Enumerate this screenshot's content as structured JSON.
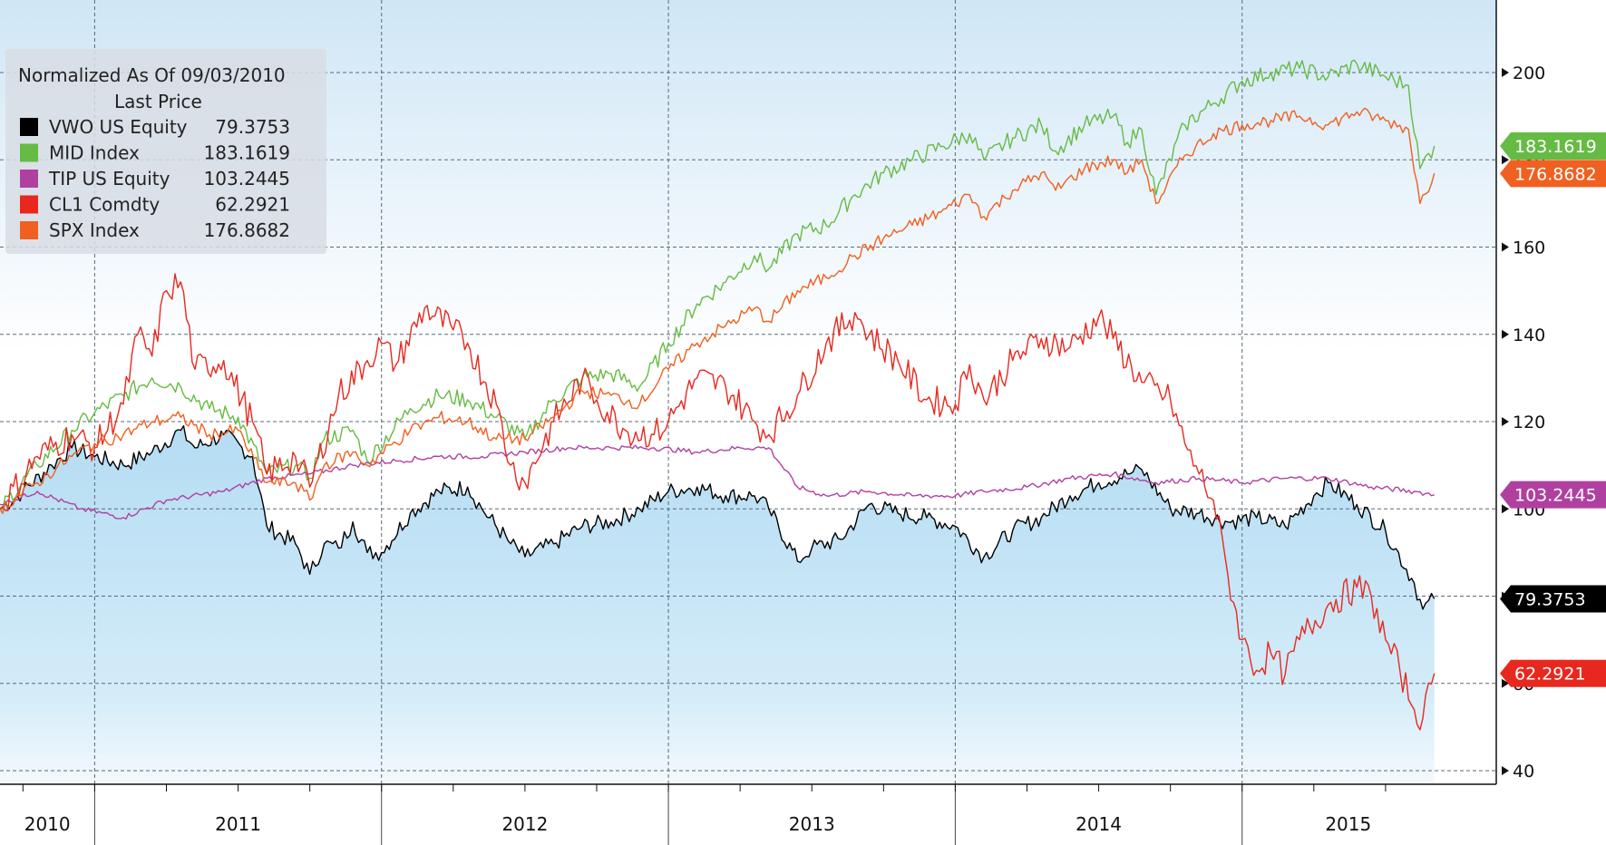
{
  "chart_data": {
    "type": "line",
    "legend": {
      "title": "Normalized As Of 09/03/2010",
      "subtitle": "Last Price",
      "position": "top-left"
    },
    "x_tick_labels": [
      "2010",
      "2011",
      "2012",
      "2013",
      "2014",
      "2015"
    ],
    "y_tick_labels": [
      "40",
      "60",
      "80",
      "100",
      "120",
      "140",
      "160",
      "180",
      "200"
    ],
    "x_range": [
      2010.67,
      2015.75
    ],
    "ylim": [
      36,
      218
    ],
    "grid": true,
    "series": [
      {
        "name": "VWO US Equity",
        "last": "79.3753",
        "last_value": 79.3753,
        "color": "#000000",
        "area_fill": true,
        "points": [
          [
            2010.67,
            100
          ],
          [
            2010.75,
            104
          ],
          [
            2010.85,
            110
          ],
          [
            2010.92,
            114
          ],
          [
            2011.0,
            112
          ],
          [
            2011.1,
            110
          ],
          [
            2011.2,
            113
          ],
          [
            2011.3,
            118
          ],
          [
            2011.35,
            114
          ],
          [
            2011.45,
            117
          ],
          [
            2011.55,
            112
          ],
          [
            2011.6,
            96
          ],
          [
            2011.7,
            92
          ],
          [
            2011.75,
            85
          ],
          [
            2011.8,
            92
          ],
          [
            2011.85,
            91
          ],
          [
            2011.9,
            97
          ],
          [
            2011.95,
            90
          ],
          [
            2012.0,
            90
          ],
          [
            2012.1,
            99
          ],
          [
            2012.2,
            104
          ],
          [
            2012.3,
            105
          ],
          [
            2012.35,
            100
          ],
          [
            2012.45,
            92
          ],
          [
            2012.5,
            89
          ],
          [
            2012.6,
            92
          ],
          [
            2012.7,
            96
          ],
          [
            2012.8,
            97
          ],
          [
            2012.9,
            100
          ],
          [
            2013.0,
            104
          ],
          [
            2013.1,
            105
          ],
          [
            2013.2,
            103
          ],
          [
            2013.3,
            103
          ],
          [
            2013.35,
            100
          ],
          [
            2013.45,
            88
          ],
          [
            2013.5,
            91
          ],
          [
            2013.6,
            93
          ],
          [
            2013.7,
            101
          ],
          [
            2013.8,
            99
          ],
          [
            2013.9,
            98
          ],
          [
            2014.0,
            96
          ],
          [
            2014.1,
            89
          ],
          [
            2014.2,
            95
          ],
          [
            2014.3,
            98
          ],
          [
            2014.4,
            103
          ],
          [
            2014.5,
            106
          ],
          [
            2014.6,
            108
          ],
          [
            2014.65,
            109
          ],
          [
            2014.75,
            100
          ],
          [
            2014.85,
            99
          ],
          [
            2014.95,
            97
          ],
          [
            2015.05,
            98
          ],
          [
            2015.15,
            96
          ],
          [
            2015.25,
            103
          ],
          [
            2015.3,
            106
          ],
          [
            2015.4,
            101
          ],
          [
            2015.5,
            95
          ],
          [
            2015.6,
            83
          ],
          [
            2015.63,
            77
          ],
          [
            2015.67,
            79.4
          ]
        ]
      },
      {
        "name": "MID Index",
        "last": "183.1619",
        "last_value": 183.1619,
        "color": "#66bb44",
        "area_fill": false,
        "points": [
          [
            2010.67,
            100
          ],
          [
            2010.8,
            110
          ],
          [
            2010.92,
            118
          ],
          [
            2011.0,
            122
          ],
          [
            2011.1,
            126
          ],
          [
            2011.2,
            130
          ],
          [
            2011.3,
            128
          ],
          [
            2011.4,
            123
          ],
          [
            2011.5,
            121
          ],
          [
            2011.6,
            108
          ],
          [
            2011.7,
            110
          ],
          [
            2011.75,
            107
          ],
          [
            2011.8,
            116
          ],
          [
            2011.9,
            118
          ],
          [
            2011.95,
            111
          ],
          [
            2012.1,
            123
          ],
          [
            2012.2,
            126
          ],
          [
            2012.3,
            125
          ],
          [
            2012.4,
            121
          ],
          [
            2012.5,
            116
          ],
          [
            2012.6,
            125
          ],
          [
            2012.7,
            130
          ],
          [
            2012.8,
            131
          ],
          [
            2012.9,
            128
          ],
          [
            2013.0,
            138
          ],
          [
            2013.1,
            147
          ],
          [
            2013.2,
            152
          ],
          [
            2013.3,
            158
          ],
          [
            2013.35,
            155
          ],
          [
            2013.45,
            163
          ],
          [
            2013.55,
            165
          ],
          [
            2013.65,
            172
          ],
          [
            2013.75,
            177
          ],
          [
            2013.85,
            180
          ],
          [
            2013.95,
            183
          ],
          [
            2014.05,
            186
          ],
          [
            2014.1,
            180
          ],
          [
            2014.2,
            185
          ],
          [
            2014.3,
            188
          ],
          [
            2014.35,
            182
          ],
          [
            2014.45,
            188
          ],
          [
            2014.55,
            190
          ],
          [
            2014.6,
            184
          ],
          [
            2014.65,
            187
          ],
          [
            2014.7,
            172
          ],
          [
            2014.8,
            188
          ],
          [
            2014.9,
            193
          ],
          [
            2015.0,
            198
          ],
          [
            2015.1,
            200
          ],
          [
            2015.2,
            201
          ],
          [
            2015.3,
            199
          ],
          [
            2015.4,
            202
          ],
          [
            2015.5,
            199
          ],
          [
            2015.58,
            197
          ],
          [
            2015.62,
            178
          ],
          [
            2015.67,
            183.2
          ]
        ]
      },
      {
        "name": "TIP US Equity",
        "last": "103.2445",
        "last_value": 103.2445,
        "color": "#b040a0",
        "area_fill": false,
        "points": [
          [
            2010.67,
            101
          ],
          [
            2010.8,
            104
          ],
          [
            2010.95,
            100
          ],
          [
            2011.1,
            98
          ],
          [
            2011.25,
            102
          ],
          [
            2011.45,
            104
          ],
          [
            2011.6,
            107
          ],
          [
            2011.75,
            108
          ],
          [
            2011.9,
            110
          ],
          [
            2012.05,
            111
          ],
          [
            2012.2,
            112
          ],
          [
            2012.35,
            112
          ],
          [
            2012.5,
            113
          ],
          [
            2012.65,
            114
          ],
          [
            2012.8,
            114
          ],
          [
            2012.95,
            114
          ],
          [
            2013.1,
            113
          ],
          [
            2013.25,
            114
          ],
          [
            2013.35,
            114
          ],
          [
            2013.45,
            105
          ],
          [
            2013.55,
            103
          ],
          [
            2013.7,
            104
          ],
          [
            2013.85,
            103
          ],
          [
            2014.0,
            103
          ],
          [
            2014.1,
            104
          ],
          [
            2014.25,
            105
          ],
          [
            2014.4,
            107
          ],
          [
            2014.55,
            108
          ],
          [
            2014.7,
            106
          ],
          [
            2014.85,
            107
          ],
          [
            2015.0,
            106
          ],
          [
            2015.15,
            107
          ],
          [
            2015.3,
            107
          ],
          [
            2015.45,
            105
          ],
          [
            2015.6,
            104
          ],
          [
            2015.67,
            103.2
          ]
        ]
      },
      {
        "name": "CL1 Comdty",
        "last": "62.2921",
        "last_value": 62.2921,
        "color": "#e8281e",
        "area_fill": false,
        "points": [
          [
            2010.67,
            100
          ],
          [
            2010.8,
            112
          ],
          [
            2010.92,
            117
          ],
          [
            2011.0,
            114
          ],
          [
            2011.1,
            124
          ],
          [
            2011.15,
            140
          ],
          [
            2011.2,
            135
          ],
          [
            2011.25,
            150
          ],
          [
            2011.3,
            152
          ],
          [
            2011.35,
            132
          ],
          [
            2011.45,
            134
          ],
          [
            2011.55,
            120
          ],
          [
            2011.6,
            108
          ],
          [
            2011.7,
            112
          ],
          [
            2011.75,
            105
          ],
          [
            2011.85,
            126
          ],
          [
            2011.95,
            134
          ],
          [
            2012.0,
            138
          ],
          [
            2012.05,
            133
          ],
          [
            2012.15,
            146
          ],
          [
            2012.25,
            141
          ],
          [
            2012.3,
            138
          ],
          [
            2012.4,
            124
          ],
          [
            2012.45,
            110
          ],
          [
            2012.5,
            106
          ],
          [
            2012.6,
            120
          ],
          [
            2012.7,
            130
          ],
          [
            2012.75,
            125
          ],
          [
            2012.85,
            118
          ],
          [
            2012.95,
            117
          ],
          [
            2013.0,
            120
          ],
          [
            2013.1,
            130
          ],
          [
            2013.2,
            128
          ],
          [
            2013.3,
            120
          ],
          [
            2013.35,
            117
          ],
          [
            2013.45,
            126
          ],
          [
            2013.55,
            138
          ],
          [
            2013.65,
            145
          ],
          [
            2013.7,
            140
          ],
          [
            2013.8,
            134
          ],
          [
            2013.9,
            125
          ],
          [
            2014.0,
            124
          ],
          [
            2014.05,
            133
          ],
          [
            2014.1,
            125
          ],
          [
            2014.2,
            134
          ],
          [
            2014.3,
            139
          ],
          [
            2014.4,
            137
          ],
          [
            2014.5,
            144
          ],
          [
            2014.55,
            139
          ],
          [
            2014.65,
            129
          ],
          [
            2014.75,
            125
          ],
          [
            2014.8,
            115
          ],
          [
            2014.85,
            108
          ],
          [
            2014.9,
            102
          ],
          [
            2014.95,
            85
          ],
          [
            2015.0,
            70
          ],
          [
            2015.05,
            63
          ],
          [
            2015.1,
            67
          ],
          [
            2015.15,
            62
          ],
          [
            2015.2,
            70
          ],
          [
            2015.3,
            78
          ],
          [
            2015.4,
            82
          ],
          [
            2015.45,
            80
          ],
          [
            2015.5,
            70
          ],
          [
            2015.55,
            63
          ],
          [
            2015.6,
            54
          ],
          [
            2015.63,
            52
          ],
          [
            2015.67,
            62.3
          ]
        ]
      },
      {
        "name": "SPX Index",
        "last": "176.8682",
        "last_value": 176.8682,
        "color": "#f06020",
        "area_fill": false,
        "points": [
          [
            2010.67,
            100
          ],
          [
            2010.8,
            106
          ],
          [
            2010.92,
            112
          ],
          [
            2011.0,
            115
          ],
          [
            2011.1,
            117
          ],
          [
            2011.2,
            120
          ],
          [
            2011.3,
            121
          ],
          [
            2011.4,
            117
          ],
          [
            2011.5,
            118
          ],
          [
            2011.6,
            106
          ],
          [
            2011.7,
            106
          ],
          [
            2011.75,
            102
          ],
          [
            2011.8,
            110
          ],
          [
            2011.9,
            113
          ],
          [
            2011.95,
            110
          ],
          [
            2012.1,
            118
          ],
          [
            2012.2,
            121
          ],
          [
            2012.3,
            120
          ],
          [
            2012.4,
            116
          ],
          [
            2012.5,
            116
          ],
          [
            2012.6,
            121
          ],
          [
            2012.7,
            127
          ],
          [
            2012.8,
            126
          ],
          [
            2012.9,
            124
          ],
          [
            2013.0,
            132
          ],
          [
            2013.1,
            138
          ],
          [
            2013.2,
            142
          ],
          [
            2013.3,
            146
          ],
          [
            2013.35,
            143
          ],
          [
            2013.45,
            150
          ],
          [
            2013.55,
            153
          ],
          [
            2013.65,
            158
          ],
          [
            2013.75,
            162
          ],
          [
            2013.85,
            165
          ],
          [
            2013.95,
            168
          ],
          [
            2014.05,
            172
          ],
          [
            2014.1,
            167
          ],
          [
            2014.2,
            173
          ],
          [
            2014.3,
            177
          ],
          [
            2014.35,
            173
          ],
          [
            2014.45,
            178
          ],
          [
            2014.55,
            180
          ],
          [
            2014.6,
            177
          ],
          [
            2014.65,
            180
          ],
          [
            2014.7,
            170
          ],
          [
            2014.8,
            181
          ],
          [
            2014.9,
            186
          ],
          [
            2015.0,
            188
          ],
          [
            2015.1,
            189
          ],
          [
            2015.2,
            190
          ],
          [
            2015.3,
            188
          ],
          [
            2015.4,
            191
          ],
          [
            2015.5,
            189
          ],
          [
            2015.58,
            187
          ],
          [
            2015.62,
            170
          ],
          [
            2015.67,
            176.9
          ]
        ]
      }
    ]
  }
}
